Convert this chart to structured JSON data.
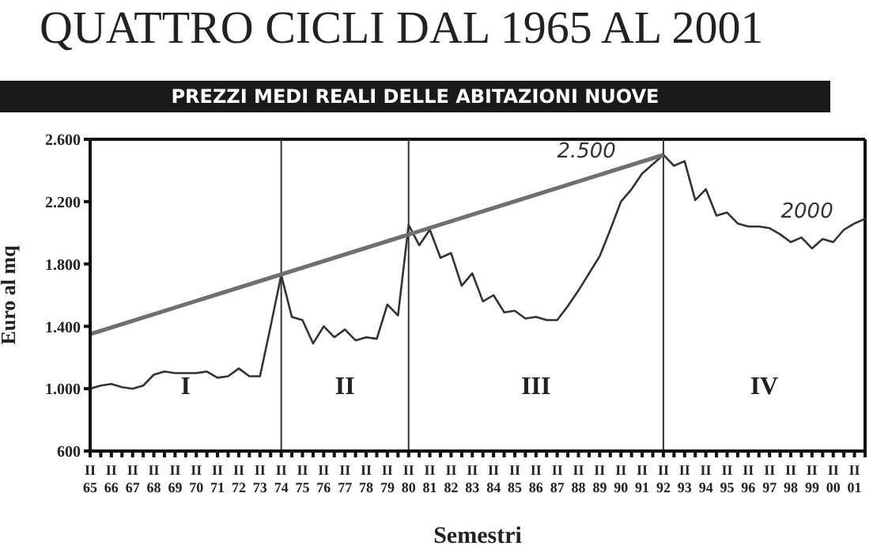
{
  "chart_data": {
    "type": "line",
    "title": "QUATTRO CICLI DAL 1965 AL 2001",
    "subtitle": "PREZZI MEDI REALI DELLE ABITAZIONI NUOVE",
    "xlabel": "Semestri",
    "ylabel": "Euro al mq",
    "categories": [
      "II 65",
      null,
      "II 66",
      null,
      "II 67",
      null,
      "II 68",
      null,
      "II 69",
      null,
      "II 70",
      null,
      "II 71",
      null,
      "II 72",
      null,
      "II 73",
      null,
      "II 74",
      null,
      "II 75",
      null,
      "II 76",
      null,
      "II 77",
      null,
      "II 78",
      null,
      "II 79",
      null,
      "II 80",
      null,
      "II 81",
      null,
      "II 82",
      null,
      "II 83",
      null,
      "II 84",
      null,
      "II 85",
      null,
      "II 86",
      null,
      "II 87",
      null,
      "II 88",
      null,
      "II 89",
      null,
      "II 90",
      null,
      "II 91",
      null,
      "II 92",
      null,
      "II 93",
      null,
      "II 94",
      null,
      "II 95",
      null,
      "II 96",
      null,
      "II 97",
      null,
      "II 98",
      null,
      "II 99",
      null,
      "II 00",
      null,
      "II 01",
      null
    ],
    "series": [
      {
        "color": "#333333",
        "values": [
          1000,
          1020,
          1030,
          1010,
          1000,
          1020,
          1090,
          1110,
          1100,
          1100,
          1100,
          1110,
          1070,
          1080,
          1130,
          1080,
          1080,
          1400,
          1730,
          1460,
          1440,
          1290,
          1400,
          1330,
          1380,
          1310,
          1330,
          1320,
          1540,
          1470,
          2050,
          1920,
          2020,
          1840,
          1870,
          1660,
          1740,
          1560,
          1600,
          1490,
          1500,
          1450,
          1460,
          1440,
          1440,
          1530,
          1630,
          1740,
          1850,
          2020,
          2200,
          2280,
          2380,
          2440,
          2500,
          2430,
          2460,
          2210,
          2280,
          2110,
          2130,
          2060,
          2040,
          2040,
          2030,
          1990,
          1940,
          1970,
          1900,
          1960,
          1940,
          2020,
          2060,
          2090
        ]
      },
      {
        "type": "line",
        "color": "#707070",
        "x": [
          "II 65",
          "II 92"
        ],
        "values": [
          1350,
          2500
        ]
      }
    ],
    "ylim": [
      600,
      2600
    ],
    "yticks": [
      {
        "value": 600,
        "label": "600"
      },
      {
        "value": 1000,
        "label": "1.000"
      },
      {
        "value": 1400,
        "label": "1.400"
      },
      {
        "value": 1800,
        "label": "1.800"
      },
      {
        "value": 2200,
        "label": "2.200"
      },
      {
        "value": 2600,
        "label": "2.600"
      }
    ],
    "ref_lines": [
      {
        "axis": "x",
        "value": "II 74",
        "color": "#333333"
      },
      {
        "axis": "x",
        "value": "II 80",
        "color": "#333333"
      },
      {
        "axis": "x",
        "value": "II 92",
        "color": "#333333"
      }
    ],
    "annotations": [
      "I",
      "II",
      "III",
      "IV",
      {
        "text": "2.500",
        "x": "II 92",
        "y": 2500
      },
      {
        "text": "2000",
        "x": "II 00",
        "y": 2000
      }
    ],
    "marker": "none",
    "line_style": "solid"
  }
}
